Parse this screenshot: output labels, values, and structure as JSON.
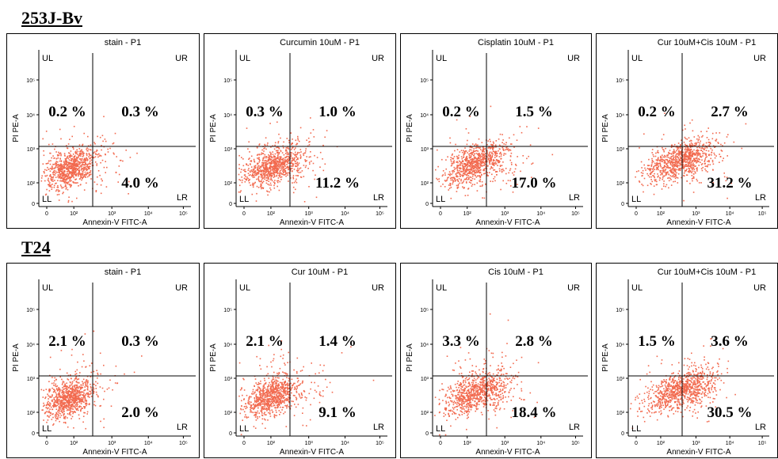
{
  "rows": [
    {
      "label": "253J-Bv",
      "panels": [
        {
          "title": "stain - P1",
          "pct": {
            "ul": "0.2 %",
            "ur": "0.3 %",
            "lr": "4.0 %"
          }
        },
        {
          "title": "Curcumin 10uM - P1",
          "pct": {
            "ul": "0.3 %",
            "ur": "1.0 %",
            "lr": "11.2 %"
          }
        },
        {
          "title": "Cisplatin 10uM - P1",
          "pct": {
            "ul": "0.2 %",
            "ur": "1.5 %",
            "lr": "17.0 %"
          }
        },
        {
          "title": "Cur 10uM+Cis 10uM - P1",
          "pct": {
            "ul": "0.2 %",
            "ur": "2.7 %",
            "lr": "31.2 %"
          }
        }
      ]
    },
    {
      "label": "T24",
      "panels": [
        {
          "title": "stain - P1",
          "pct": {
            "ul": "2.1 %",
            "ur": "0.3 %",
            "lr": "2.0 %"
          }
        },
        {
          "title": "Cur 10uM - P1",
          "pct": {
            "ul": "2.1 %",
            "ur": "1.4 %",
            "lr": "9.1 %"
          }
        },
        {
          "title": "Cis 10uM - P1",
          "pct": {
            "ul": "3.3 %",
            "ur": "2.8 %",
            "lr": "18.4 %"
          }
        },
        {
          "title": "Cur 10uM+Cis 10uM - P1",
          "pct": {
            "ul": "1.5 %",
            "ur": "3.6 %",
            "lr": "30.5 %"
          }
        }
      ]
    }
  ],
  "quadrant_labels": {
    "ul": "UL",
    "ur": "UR",
    "ll": "LL",
    "lr": "LR"
  },
  "chart_data": {
    "type": "scatter",
    "xlabel": "Annexin-V FITC-A",
    "ylabel": "PI PE-A",
    "x_ticks": [
      "0",
      "10²",
      "10³",
      "10⁴",
      "10⁵"
    ],
    "y_ticks": [
      "0",
      "10²",
      "10³",
      "10⁴",
      "10⁵"
    ],
    "point_color": "#f26a4f",
    "gate_color": "#000000"
  }
}
